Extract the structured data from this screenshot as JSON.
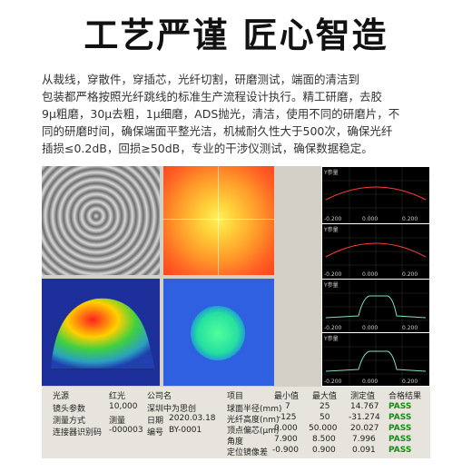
{
  "heading": "工艺严谨   匠心智造",
  "paragraph": [
    "从裁线，穿散件，穿插芯，光纤切割，研磨测试，端面的清洁到",
    "包装都严格按照光纤跳线的标准生产流程设计执行。精工研磨，去胶",
    "9μ粗磨，30μ去粗，1μ细磨，ADS抛光，清洁，使用不同的研磨片，不",
    "同的研磨时间，确保端面平整光洁，机械耐久性大于500次，确保光纤",
    "插损≤0.2dB，回损≥50dB，专业的干涉仪测试，确保数据稳定。"
  ],
  "graphs": [
    {
      "axis_top": "Y参量",
      "xticks": [
        "-0.200",
        "0.000",
        "0.200"
      ]
    },
    {
      "axis_top": "Y参量",
      "xticks": [
        "-0.200",
        "0.000",
        "0.200"
      ]
    },
    {
      "axis_top": "Y参量",
      "xticks": [
        "-0.200",
        "0.000",
        "0.200"
      ]
    },
    {
      "axis_top": "Y参量",
      "xticks": [
        "-0.200",
        "0.000",
        "0.200"
      ]
    }
  ],
  "info_left": [
    [
      "光源",
      "红光"
    ],
    [
      "镜头参数",
      "10,000"
    ],
    [
      "测量方式",
      "测量"
    ],
    [
      "连接器识别码",
      "-000003"
    ]
  ],
  "info_mid": [
    [
      "公司名",
      ""
    ],
    [
      "深圳中为思创",
      ""
    ],
    [
      "日期",
      "2020.03.18"
    ],
    [
      "编号",
      "BY-0001"
    ]
  ],
  "results": {
    "headers": [
      "项目",
      "最小值",
      "最大值",
      "测定值",
      "合格结果"
    ],
    "rows": [
      [
        "球面半径(mm)",
        "7",
        "25",
        "14.767",
        "PASS"
      ],
      [
        "光纤高度(nm)",
        "-125",
        "50",
        "-31.274",
        "PASS"
      ],
      [
        "顶点偏芯(μm)",
        "0.000",
        "50.000",
        "20.027",
        "PASS"
      ],
      [
        "角度",
        "7.900",
        "8.500",
        "7.996",
        "PASS"
      ],
      [
        "定位镜像差",
        "-0.900",
        "0.900",
        "0.091",
        "PASS"
      ]
    ]
  }
}
